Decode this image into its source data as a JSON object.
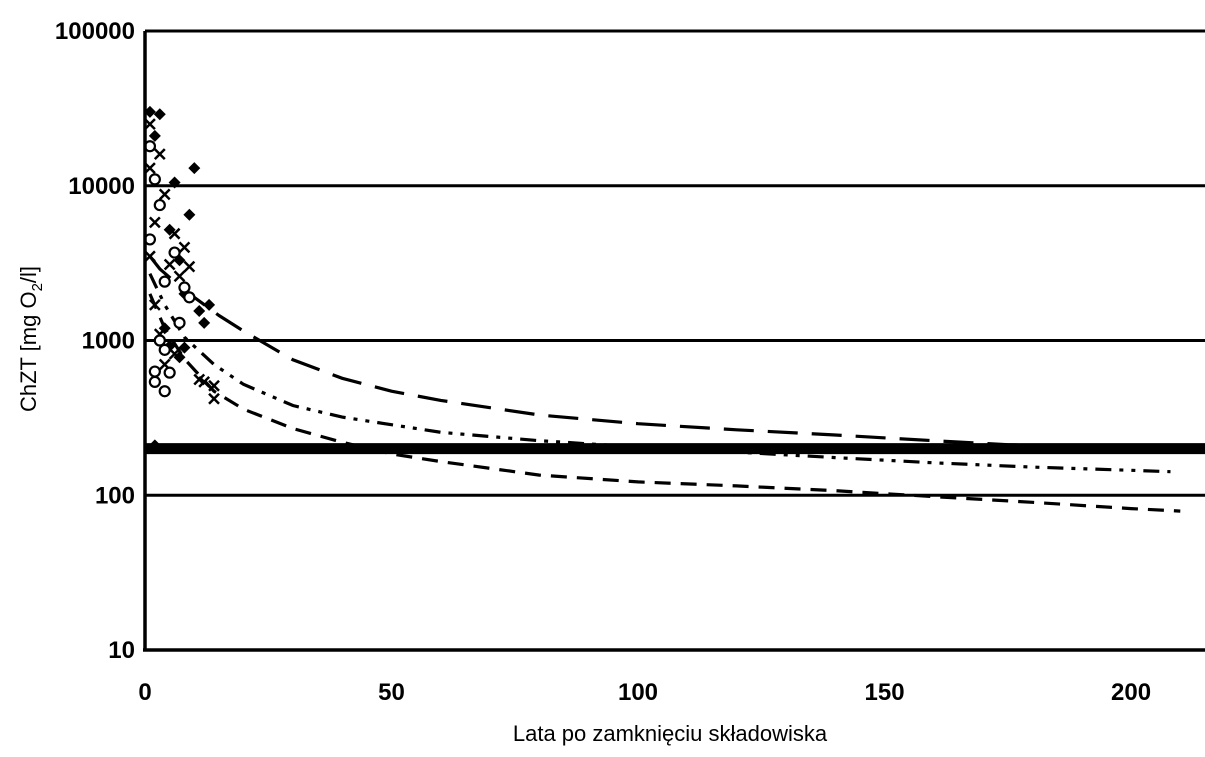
{
  "chart_data": {
    "type": "scatter",
    "title": "",
    "xlabel": "Lata po zamknięciu składowiska",
    "ylabel": "ChZT [mg O2/l]",
    "ylabel_parts": {
      "before": "ChZT [mg O",
      "sub": "2",
      "after": "/l]"
    },
    "y_scale": "log",
    "xlim": [
      0,
      215
    ],
    "ylim": [
      10,
      100000
    ],
    "x_ticks": [
      0,
      50,
      100,
      150,
      200
    ],
    "x_tick_labels": [
      "0",
      "50",
      "100",
      "150",
      "200"
    ],
    "y_ticks": [
      10,
      100,
      1000,
      10000,
      100000
    ],
    "y_tick_labels": [
      "10",
      "100",
      "1000",
      "10000",
      "100000"
    ],
    "grid": "horizontal",
    "reference_line": {
      "y": 200
    },
    "scatter": [
      {
        "marker": "diamond",
        "points": [
          [
            1,
            30000
          ],
          [
            3,
            29000
          ],
          [
            6,
            10500
          ],
          [
            9,
            6500
          ],
          [
            10,
            13000
          ],
          [
            2,
            21000
          ],
          [
            5,
            5200
          ],
          [
            7,
            3300
          ],
          [
            8,
            2000
          ],
          [
            12,
            1300
          ],
          [
            11,
            1550
          ],
          [
            4,
            1200
          ],
          [
            8,
            900
          ],
          [
            13,
            1700
          ],
          [
            2,
            210
          ],
          [
            7,
            780
          ],
          [
            5,
            920
          ]
        ]
      },
      {
        "marker": "cross",
        "points": [
          [
            1,
            25000
          ],
          [
            3,
            16000
          ],
          [
            4,
            8800
          ],
          [
            6,
            4900
          ],
          [
            2,
            5800
          ],
          [
            8,
            4000
          ],
          [
            1,
            3500
          ],
          [
            5,
            3100
          ],
          [
            7,
            2600
          ],
          [
            2,
            1700
          ],
          [
            9,
            3000
          ],
          [
            3,
            1100
          ],
          [
            6,
            820
          ],
          [
            11,
            560
          ],
          [
            14,
            510
          ],
          [
            14,
            420
          ],
          [
            12,
            540
          ],
          [
            4,
            700
          ],
          [
            1,
            13000
          ]
        ]
      },
      {
        "marker": "circle",
        "points": [
          [
            1,
            18000
          ],
          [
            2,
            11000
          ],
          [
            3,
            7500
          ],
          [
            4,
            2400
          ],
          [
            6,
            3700
          ],
          [
            8,
            2200
          ],
          [
            9,
            1900
          ],
          [
            3,
            1000
          ],
          [
            4,
            870
          ],
          [
            5,
            620
          ],
          [
            2,
            630
          ],
          [
            2,
            540
          ],
          [
            4,
            470
          ],
          [
            7,
            1300
          ],
          [
            1,
            4500
          ]
        ]
      }
    ],
    "series": [
      {
        "style": "long-dash",
        "x": [
          1,
          3,
          6,
          10,
          15,
          20,
          30,
          40,
          50,
          60,
          80,
          100,
          120,
          140,
          160,
          175,
          195,
          215
        ],
        "y": [
          3500,
          2900,
          2400,
          1900,
          1450,
          1150,
          750,
          570,
          470,
          410,
          330,
          290,
          265,
          245,
          225,
          212,
          205,
          200
        ]
      },
      {
        "style": "dash-dot-dot",
        "x": [
          1,
          4,
          8,
          14,
          20,
          30,
          40,
          60,
          80,
          100,
          120,
          140,
          160,
          180,
          200,
          208
        ],
        "y": [
          2700,
          1700,
          1050,
          700,
          520,
          380,
          320,
          255,
          225,
          205,
          190,
          175,
          162,
          152,
          145,
          142
        ]
      },
      {
        "style": "short-dash",
        "x": [
          1,
          4,
          8,
          14,
          20,
          30,
          40,
          50,
          60,
          80,
          100,
          120,
          140,
          160,
          180,
          200,
          210
        ],
        "y": [
          2000,
          1200,
          760,
          470,
          360,
          270,
          220,
          185,
          165,
          135,
          122,
          115,
          107,
          98,
          90,
          82,
          79
        ]
      }
    ]
  }
}
